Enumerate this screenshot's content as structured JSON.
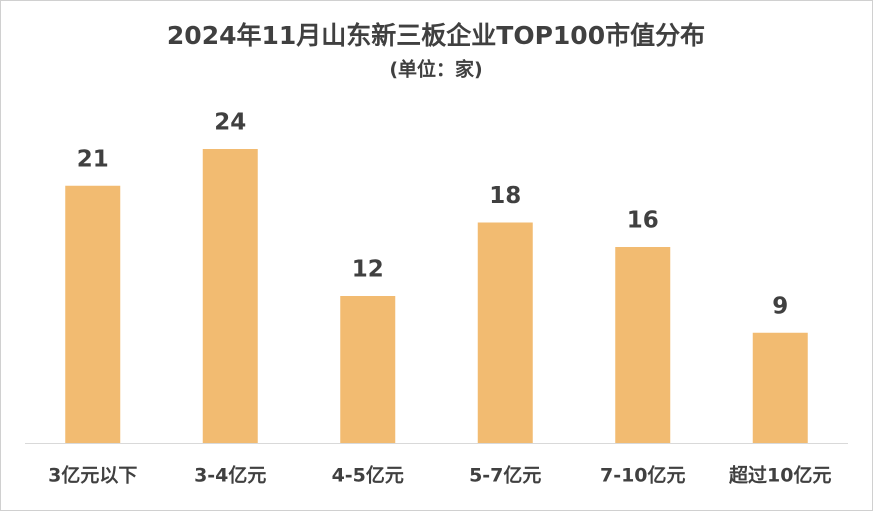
{
  "chart_data": {
    "type": "bar",
    "title": "2024年11月山东新三板企业TOP100市值分布",
    "subtitle": "(单位：家)",
    "categories": [
      "3亿元以下",
      "3-4亿元",
      "4-5亿元",
      "5-7亿元",
      "7-10亿元",
      "超过10亿元"
    ],
    "values": [
      21,
      24,
      12,
      18,
      16,
      9
    ],
    "color": "#f2bb71"
  }
}
